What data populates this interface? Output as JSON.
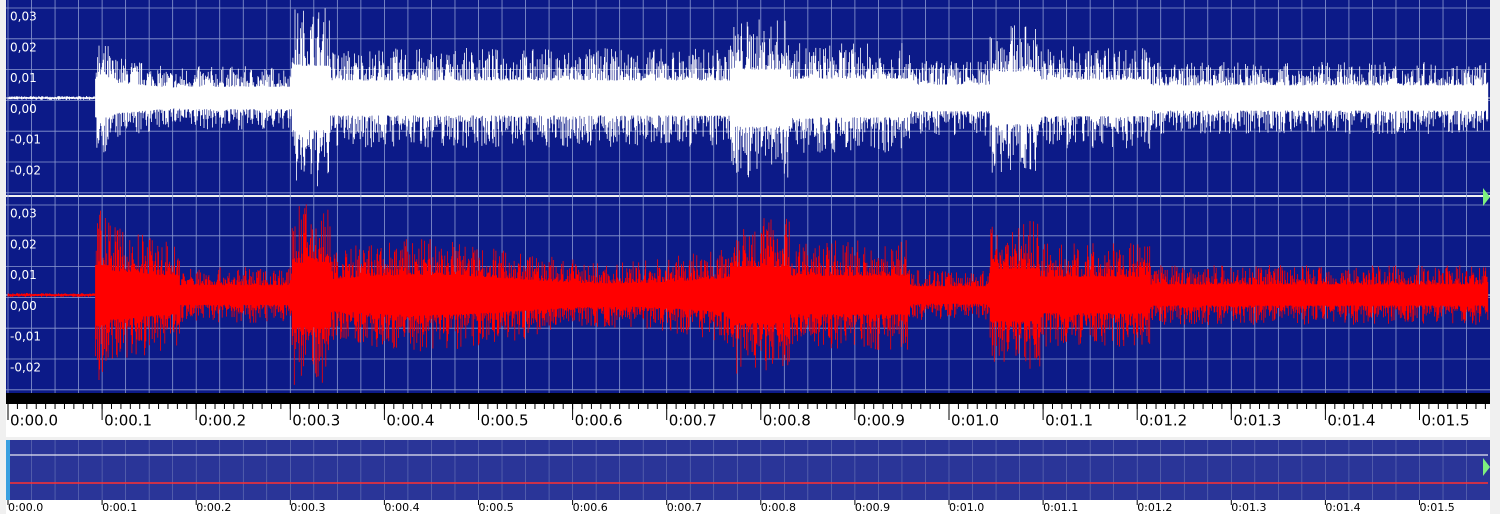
{
  "channels": [
    {
      "amplitude_labels": [
        "0,03",
        "0,02",
        "0,01",
        "0,00",
        "-0,01",
        "-0,02"
      ]
    },
    {
      "amplitude_labels": [
        "0,03",
        "0,02",
        "0,01",
        "0,00",
        "-0,01",
        "-0,02"
      ]
    }
  ],
  "timeline": {
    "labels": [
      "0:00.0",
      "0:00.1",
      "0:00.2",
      "0:00.3",
      "0:00.4",
      "0:00.5",
      "0:00.6",
      "0:00.7",
      "0:00.8",
      "0:00.9",
      "0:01.0",
      "0:01.1",
      "0:01.2",
      "0:01.3",
      "0:01.4",
      "0:01.5"
    ]
  },
  "overview": {
    "labels": [
      "0:00.0",
      "0:00.1",
      "0:00.2",
      "0:00.3",
      "0:00.4",
      "0:00.5",
      "0:00.6",
      "0:00.7",
      "0:00.8",
      "0:00.9",
      "0:01.0",
      "0:01.1",
      "0:01.2",
      "0:01.3",
      "0:01.4",
      "0:01.5"
    ]
  }
}
